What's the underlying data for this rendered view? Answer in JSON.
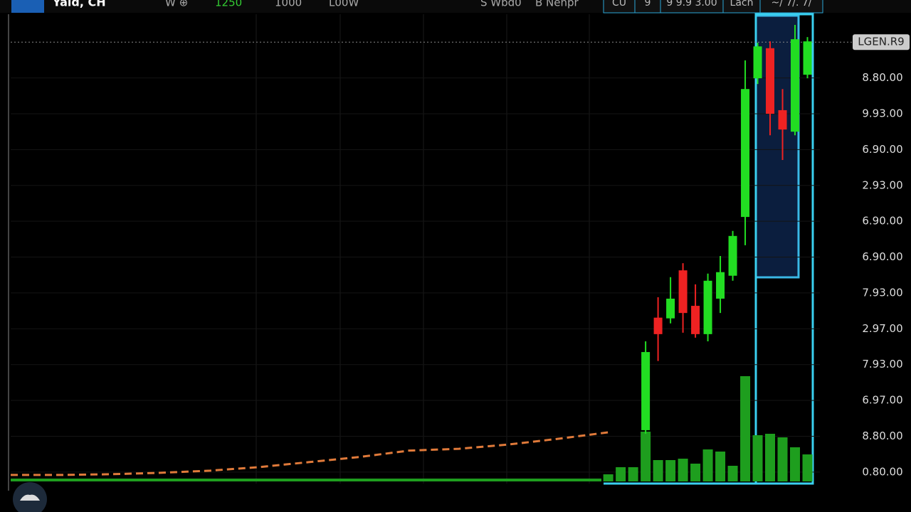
{
  "toolbar": {
    "logo": "Yald, CH",
    "items": [
      "W ⊕",
      "1250",
      "1000",
      "L00W",
      "S Wbd0",
      "B Nehpr"
    ],
    "tabs": [
      "CU",
      "9",
      "9 9.9 3.00",
      "Lach",
      "~/ 7/. 7/"
    ]
  },
  "chart_data": {
    "type": "candlestick",
    "xlim": [
      0,
      65
    ],
    "ylim": [
      -0.32,
      12.5
    ],
    "yticks": [
      {
        "value": 0,
        "label": "0.80.00"
      },
      {
        "value": 1,
        "label": "8.80.00"
      },
      {
        "value": 2,
        "label": "6.97.00"
      },
      {
        "value": 3,
        "label": "7.93.00"
      },
      {
        "value": 4,
        "label": "2.97.00"
      },
      {
        "value": 5,
        "label": "7.93.00"
      },
      {
        "value": 6,
        "label": "6.90.00"
      },
      {
        "value": 7,
        "label": "6.90.00"
      },
      {
        "value": 8,
        "label": "2.93.00"
      },
      {
        "value": 9,
        "label": "6.90.00"
      },
      {
        "value": 10,
        "label": "9.93.00"
      },
      {
        "value": 11,
        "label": "8.80.00"
      },
      {
        "value": 12,
        "label": "LGEN.R9"
      }
    ],
    "grid": true,
    "candles": {
      "up_color": "#22dd22",
      "down_color": "#ee2222",
      "x": [
        51,
        52,
        53,
        54,
        55,
        56,
        57,
        58,
        59,
        60,
        61,
        62,
        63,
        64
      ],
      "open": [
        1.17,
        4.31,
        4.29,
        5.63,
        4.64,
        3.85,
        4.84,
        5.48,
        7.12,
        10.99,
        11.83,
        10.1,
        9.5,
        11.09
      ],
      "high": [
        3.65,
        4.88,
        5.44,
        5.83,
        5.24,
        5.54,
        6.03,
        6.73,
        11.49,
        11.98,
        12.02,
        10.69,
        12.48,
        12.14
      ],
      "low": [
        1.07,
        3.1,
        4.15,
        3.89,
        3.75,
        3.65,
        4.44,
        5.34,
        6.33,
        10.83,
        9.4,
        8.71,
        9.4,
        10.99
      ],
      "close": [
        3.35,
        3.85,
        4.84,
        4.44,
        3.85,
        5.34,
        5.58,
        6.59,
        10.69,
        11.88,
        10.0,
        9.56,
        12.08,
        12.02
      ]
    },
    "price_line": {
      "color": "#e07a3a",
      "x": [
        0,
        4,
        8,
        12,
        16,
        20,
        24,
        28,
        32,
        36,
        40,
        44,
        48
      ],
      "values": [
        -0.08,
        -0.08,
        -0.06,
        -0.02,
        0.04,
        0.14,
        0.28,
        0.42,
        0.6,
        0.65,
        0.77,
        0.93,
        1.11
      ]
    },
    "volume": {
      "color": "#1e9e1e",
      "ylim": [
        0,
        150
      ],
      "x": [
        48,
        49,
        50,
        51,
        52,
        53,
        54,
        55,
        56,
        57,
        58,
        59,
        60,
        61,
        62,
        63,
        64
      ],
      "values": [
        10,
        20,
        20,
        70,
        30,
        30,
        32,
        25,
        45,
        42,
        22,
        148,
        65,
        67,
        62,
        48,
        38
      ]
    }
  }
}
